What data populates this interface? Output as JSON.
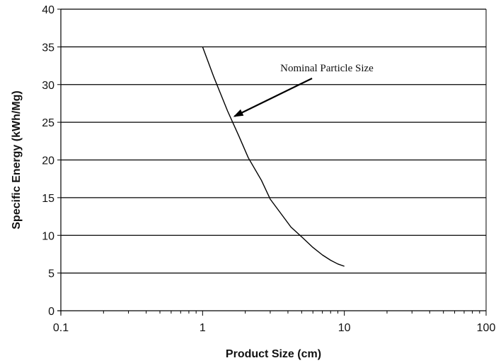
{
  "chart_data": {
    "type": "line",
    "title": "",
    "xlabel": "Product Size (cm)",
    "ylabel": "Specific Energy (kWh/Mg)",
    "x_scale": "log",
    "xlim": [
      0.1,
      100
    ],
    "ylim": [
      0,
      40
    ],
    "x_tick_labels": [
      "0.1",
      "1",
      "10",
      "100"
    ],
    "x_ticks": [
      0.1,
      1,
      10,
      100
    ],
    "y_tick_labels": [
      "0",
      "5",
      "10",
      "15",
      "20",
      "25",
      "30",
      "35",
      "40"
    ],
    "y_ticks": [
      0,
      5,
      10,
      15,
      20,
      25,
      30,
      35,
      40
    ],
    "grid": "horizontal",
    "series": [
      {
        "color": "#000000",
        "x": [
          1.0,
          1.2,
          1.5,
          1.8,
          2.1,
          2.6,
          3.0,
          3.6,
          4.2,
          5.0,
          6.0,
          7.0,
          8.0,
          9.0,
          10.0
        ],
        "y": [
          35.0,
          31.0,
          26.5,
          23.2,
          20.3,
          17.3,
          14.8,
          12.8,
          11.1,
          9.8,
          8.4,
          7.4,
          6.7,
          6.2,
          5.9
        ]
      }
    ],
    "annotations": [
      {
        "text": "Nominal Particle Size",
        "arrow_to": {
          "x": 1.68,
          "y": 25.8
        }
      }
    ]
  }
}
